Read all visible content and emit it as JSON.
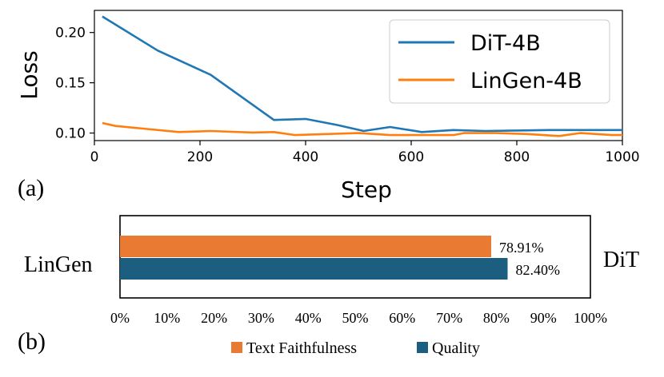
{
  "panel_a_label": "(a)",
  "panel_b_label": "(b)",
  "chart_data": [
    {
      "type": "line",
      "xlabel": "Step",
      "ylabel": "Loss",
      "xlim": [
        0,
        1000
      ],
      "ylim": [
        0.0925,
        0.222
      ],
      "xticks": [
        "0",
        "200",
        "400",
        "600",
        "800",
        "1000"
      ],
      "yticks": [
        "0.10",
        "0.15",
        "0.20"
      ],
      "grid": false,
      "legend_position": "top-right",
      "series": [
        {
          "name": "DiT-4B",
          "color": "#1f77b4",
          "x": [
            15,
            120,
            220,
            340,
            400,
            460,
            510,
            560,
            620,
            680,
            740,
            800,
            860,
            920,
            980,
            1000
          ],
          "y": [
            0.216,
            0.182,
            0.158,
            0.113,
            0.114,
            0.108,
            0.102,
            0.106,
            0.101,
            0.103,
            0.102,
            0.1025,
            0.103,
            0.103,
            0.103,
            0.103
          ]
        },
        {
          "name": "LinGen-4B",
          "color": "#ff7f0e",
          "x": [
            15,
            40,
            100,
            160,
            220,
            300,
            340,
            380,
            440,
            500,
            560,
            620,
            680,
            700,
            760,
            820,
            880,
            920,
            980,
            1000
          ],
          "y": [
            0.11,
            0.107,
            0.104,
            0.101,
            0.102,
            0.1005,
            0.101,
            0.098,
            0.099,
            0.1,
            0.098,
            0.098,
            0.098,
            0.1,
            0.1,
            0.099,
            0.097,
            0.1,
            0.098,
            0.098
          ]
        }
      ]
    },
    {
      "type": "bar",
      "orientation": "horizontal",
      "categories": [
        "Text Faithfulness",
        "Quality"
      ],
      "values": [
        78.91,
        82.4
      ],
      "value_labels": [
        "78.91%",
        "82.40%"
      ],
      "colors": [
        "#e97a34",
        "#1b5e80"
      ],
      "xlim": [
        0,
        100
      ],
      "xticks": [
        "0%",
        "10%",
        "20%",
        "30%",
        "40%",
        "50%",
        "60%",
        "70%",
        "80%",
        "90%",
        "100%"
      ],
      "left_label": "LinGen",
      "right_label": "DiT",
      "legend_position": "bottom",
      "legend": [
        "Text Faithfulness",
        "Quality"
      ]
    }
  ]
}
